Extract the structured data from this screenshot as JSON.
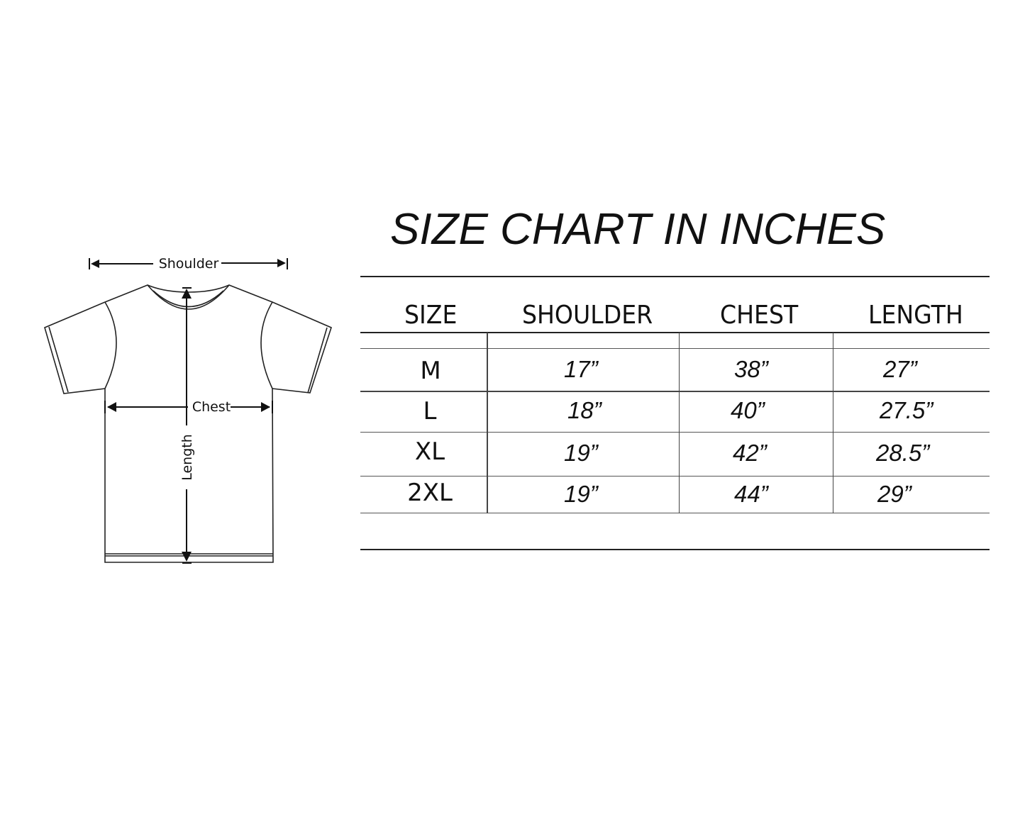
{
  "diagram": {
    "labels": {
      "shoulder": "Shoulder",
      "chest": "Chest",
      "length": "Length"
    }
  },
  "title": "SIZE CHART IN INCHES",
  "table": {
    "headers": [
      "SIZE",
      "SHOULDER",
      "CHEST",
      "LENGTH"
    ],
    "rows": [
      {
        "size": "M",
        "shoulder": "17”",
        "chest": "38”",
        "length": "27”"
      },
      {
        "size": "L",
        "shoulder": "18”",
        "chest": "40”",
        "length": "27.5”"
      },
      {
        "size": "XL",
        "shoulder": "19”",
        "chest": "42”",
        "length": "28.5”"
      },
      {
        "size": "2XL",
        "shoulder": "19”",
        "chest": "44”",
        "length": "29”"
      }
    ]
  }
}
